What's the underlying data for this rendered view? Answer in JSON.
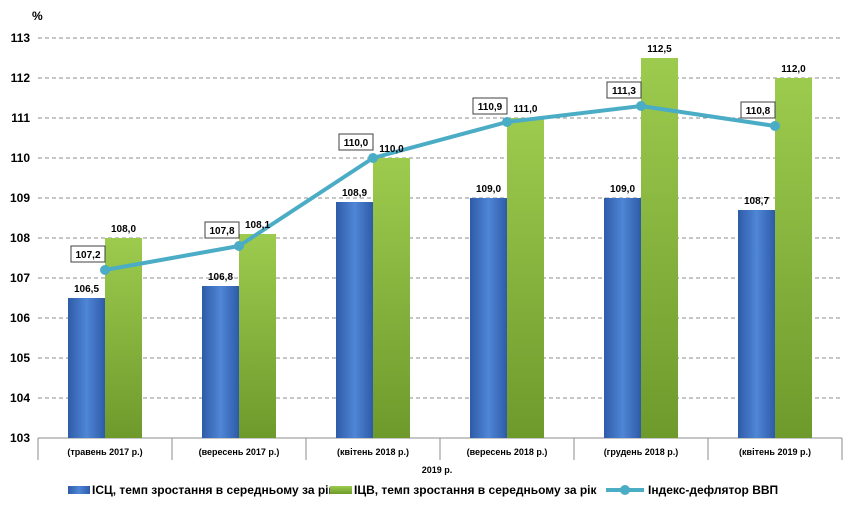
{
  "chart_data": {
    "type": "bar",
    "ylabel": "%",
    "ylim": [
      103,
      113
    ],
    "ystep": 1,
    "grid": true,
    "legend_position": "bottom",
    "xaxis_note": "2019 р.",
    "categories": [
      "(травень 2017 р.)",
      "(вересень 2017 р.)",
      "(квітень 2018 р.)",
      "(вересень 2018 р.)",
      "(грудень 2018 р.)",
      "(квітень 2019 р.)"
    ],
    "series": [
      {
        "name": "ІСЦ, темп зростання в середньому за рік",
        "kind": "bar",
        "color": "#4472C4",
        "values": [
          106.5,
          106.8,
          108.9,
          109.0,
          109.0,
          108.7
        ],
        "labels": [
          "106,5",
          "106,8",
          "108,9",
          "109,0",
          "109,0",
          "108,7"
        ]
      },
      {
        "name": "ІЦВ, темп зростання в середньому за рік",
        "kind": "bar",
        "color": "#8DB63C",
        "values": [
          108.0,
          108.1,
          110.0,
          111.0,
          112.5,
          112.0
        ],
        "labels": [
          "108,0",
          "108,1",
          "110,0",
          "111,0",
          "112,5",
          "112,0"
        ]
      },
      {
        "name": "Індекс-дефлятор  ВВП",
        "kind": "line",
        "color": "#4BACC6",
        "values": [
          107.2,
          107.8,
          110.0,
          110.9,
          111.3,
          110.8
        ],
        "labels": [
          "107,2",
          "107,8",
          "110,0",
          "110,9",
          "111,3",
          "110,8"
        ]
      }
    ]
  }
}
